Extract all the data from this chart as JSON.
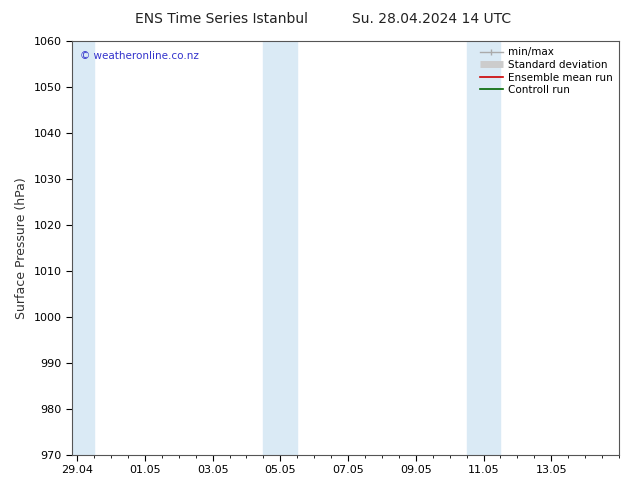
{
  "title_left": "ENS Time Series Istanbul",
  "title_right": "Su. 28.04.2024 14 UTC",
  "ylabel": "Surface Pressure (hPa)",
  "ylim": [
    970,
    1060
  ],
  "yticks": [
    970,
    980,
    990,
    1000,
    1010,
    1020,
    1030,
    1040,
    1050,
    1060
  ],
  "xtick_labels": [
    "29.04",
    "01.05",
    "03.05",
    "05.05",
    "07.05",
    "09.05",
    "11.05",
    "13.05"
  ],
  "xtick_days_from_start": [
    0,
    2,
    4,
    6,
    8,
    10,
    12,
    14
  ],
  "total_days": 16,
  "shaded_regions": [
    {
      "x_start": -0.15,
      "x_end": 0.5,
      "color": "#daeaf5"
    },
    {
      "x_start": 5.5,
      "x_end": 6.0,
      "color": "#daeaf5"
    },
    {
      "x_start": 6.0,
      "x_end": 6.5,
      "color": "#daeaf5"
    },
    {
      "x_start": 11.5,
      "x_end": 12.0,
      "color": "#daeaf5"
    },
    {
      "x_start": 12.0,
      "x_end": 12.5,
      "color": "#daeaf5"
    }
  ],
  "background_color": "#ffffff",
  "plot_bg_color": "#ffffff",
  "legend_items": [
    {
      "label": "min/max",
      "color": "#aaaaaa",
      "lw": 1.0
    },
    {
      "label": "Standard deviation",
      "color": "#cccccc",
      "lw": 5
    },
    {
      "label": "Ensemble mean run",
      "color": "#cc0000",
      "lw": 1.2
    },
    {
      "label": "Controll run",
      "color": "#006600",
      "lw": 1.2
    }
  ],
  "copyright_text": "© weatheronline.co.nz",
  "copyright_color": "#3333cc",
  "title_fontsize": 10,
  "ylabel_fontsize": 9,
  "tick_fontsize": 8,
  "legend_fontsize": 7.5
}
